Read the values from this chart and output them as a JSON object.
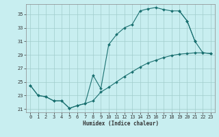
{
  "xlabel": "Humidex (Indice chaleur)",
  "bg_color": "#c8eef0",
  "grid_color": "#a0cccc",
  "line_color": "#1a7070",
  "spine_color": "#888888",
  "xlim": [
    -0.5,
    23.5
  ],
  "ylim": [
    20.5,
    36.5
  ],
  "yticks": [
    21,
    23,
    25,
    27,
    29,
    31,
    33,
    35
  ],
  "xticks": [
    0,
    1,
    2,
    3,
    4,
    5,
    6,
    7,
    8,
    9,
    10,
    11,
    12,
    13,
    14,
    15,
    16,
    17,
    18,
    19,
    20,
    21,
    22,
    23
  ],
  "upper_x": [
    0,
    1,
    2,
    3,
    4,
    5,
    6,
    7,
    8,
    9,
    10,
    11,
    12,
    13,
    14,
    15,
    16,
    17,
    18,
    19,
    20,
    21
  ],
  "upper_y": [
    24.5,
    23.0,
    22.8,
    22.2,
    22.2,
    21.1,
    21.5,
    21.8,
    26.0,
    24.0,
    30.5,
    32.0,
    33.0,
    33.5,
    35.5,
    35.8,
    36.0,
    35.7,
    35.5,
    35.5,
    34.0,
    31.0
  ],
  "lower_x": [
    0,
    1,
    2,
    3,
    4,
    5,
    6,
    7,
    8,
    9,
    10,
    11,
    12,
    13,
    14,
    15,
    16,
    17,
    18,
    19,
    20,
    21,
    22,
    23
  ],
  "lower_y": [
    24.5,
    23.0,
    22.8,
    22.2,
    22.2,
    21.1,
    21.5,
    21.8,
    22.2,
    23.5,
    24.2,
    25.0,
    25.8,
    26.5,
    27.2,
    27.8,
    28.2,
    28.6,
    28.9,
    29.1,
    29.2,
    29.3,
    29.3,
    29.2
  ],
  "right_x": [
    19,
    20,
    21,
    22,
    23
  ],
  "right_y": [
    35.5,
    34.0,
    31.0,
    29.3,
    29.2
  ],
  "xlabel_fontsize": 5.5,
  "tick_fontsize": 5.0,
  "linewidth": 0.8,
  "markersize": 2.0
}
